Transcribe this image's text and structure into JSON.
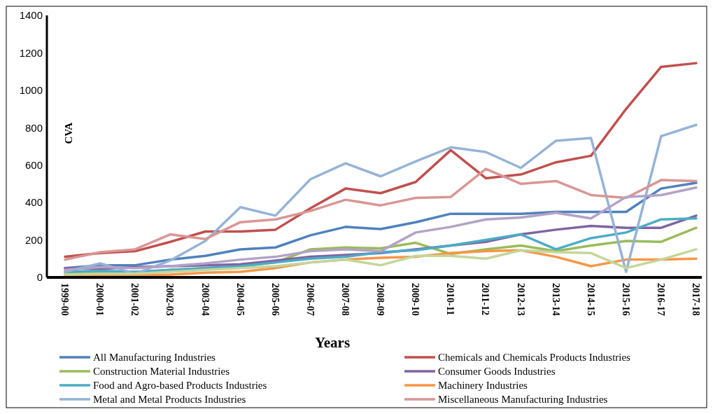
{
  "chart_data": {
    "type": "line",
    "xlabel": "Years",
    "ylabel": "CVA",
    "categories": [
      "1999-00",
      "2000-01",
      "2001-02",
      "2002-03",
      "2003-04",
      "2004-05",
      "2005-06",
      "2006-07",
      "2007-08",
      "2008-09",
      "2009-10",
      "2010-11",
      "2011-12",
      "2012-13",
      "2013-14",
      "2014-15",
      "2015-16",
      "2016-17",
      "2017-18"
    ],
    "ylim": [
      0,
      1400
    ],
    "yticks": [
      0,
      200,
      400,
      600,
      800,
      1000,
      1200,
      1400
    ],
    "grid": false,
    "legend": "bottom",
    "marker": "none",
    "line_style": "solid",
    "series": [
      {
        "name": "All Manufacturing Industries",
        "color": "#4f81bd",
        "values": [
          50,
          65,
          65,
          95,
          115,
          150,
          160,
          225,
          270,
          258,
          295,
          340,
          340,
          340,
          350,
          350,
          350,
          475,
          505
        ]
      },
      {
        "name": "Chemicals and Chemicals Products Industries",
        "color": "#c0504d",
        "values": [
          110,
          130,
          140,
          190,
          245,
          245,
          255,
          370,
          475,
          450,
          510,
          680,
          530,
          550,
          615,
          650,
          900,
          1125,
          1145
        ]
      },
      {
        "name": "Construction Material Industries",
        "color": "#9bbb59",
        "values": [
          20,
          25,
          25,
          40,
          50,
          60,
          80,
          150,
          160,
          155,
          185,
          125,
          150,
          170,
          140,
          170,
          195,
          190,
          265
        ]
      },
      {
        "name": "Consumer Goods Industries",
        "color": "#8064a2",
        "values": [
          50,
          45,
          55,
          60,
          65,
          70,
          90,
          110,
          120,
          130,
          150,
          170,
          190,
          230,
          255,
          275,
          265,
          265,
          330
        ]
      },
      {
        "name": "Food and Agro-based Products Industries",
        "color": "#4bacc6",
        "values": [
          30,
          35,
          30,
          40,
          50,
          60,
          80,
          100,
          110,
          135,
          145,
          170,
          200,
          230,
          150,
          210,
          240,
          310,
          315
        ]
      },
      {
        "name": "Machinery Industries",
        "color": "#f79646",
        "values": [
          10,
          10,
          10,
          15,
          25,
          30,
          50,
          80,
          95,
          105,
          110,
          130,
          140,
          145,
          110,
          60,
          95,
          95,
          100
        ]
      },
      {
        "name": "Metal and Metal Products Industries",
        "color": "#95b3d7",
        "values": [
          30,
          75,
          20,
          90,
          195,
          375,
          330,
          525,
          610,
          540,
          620,
          695,
          670,
          585,
          730,
          745,
          30,
          755,
          815
        ]
      },
      {
        "name": "Miscellaneous Manufacturing Industries",
        "color": "#d99694",
        "values": [
          95,
          135,
          150,
          230,
          205,
          295,
          310,
          355,
          415,
          385,
          425,
          430,
          580,
          500,
          515,
          440,
          425,
          520,
          515
        ]
      },
      {
        "color": "#c3d69b",
        "values": [
          15,
          20,
          20,
          30,
          40,
          50,
          60,
          80,
          95,
          65,
          115,
          115,
          100,
          145,
          135,
          130,
          50,
          95,
          150
        ]
      },
      {
        "color": "#b3a2c7",
        "values": [
          40,
          55,
          50,
          60,
          75,
          95,
          110,
          140,
          150,
          140,
          240,
          270,
          310,
          320,
          345,
          315,
          430,
          440,
          480
        ]
      }
    ]
  }
}
